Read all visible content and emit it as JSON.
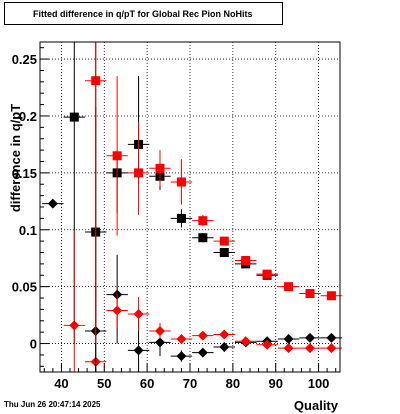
{
  "title": "Fitted difference in q/pT for Global Rec Pion NoHits",
  "footer": "Thu Jun 26 20:47:14 2025",
  "colors": {
    "black_series": "#000000",
    "red_series": "#ff0000"
  },
  "chart_data": {
    "type": "scatter",
    "title": "Fitted difference in q/pT for Global Rec Pion NoHits",
    "xlabel": "Quality",
    "ylabel": "difference in q/pT",
    "xlim": [
      35,
      105
    ],
    "ylim": [
      -0.025,
      0.265
    ],
    "grid": true,
    "x_ticks": [
      40,
      50,
      60,
      70,
      80,
      90,
      100
    ],
    "y_ticks": [
      0,
      0.05,
      0.1,
      0.15,
      0.2,
      0.25
    ],
    "y_tick_labels": [
      "0",
      "0.05",
      "0.1",
      "0.15",
      "0.2",
      "0.25"
    ],
    "series": [
      {
        "marker": "square",
        "color": "#000000",
        "points": [
          {
            "x": 43,
            "y": 0.199,
            "ex": 2.5,
            "ey_lo": 0.0,
            "ey_hi": 0.0
          },
          {
            "x": 48,
            "y": 0.098,
            "ex": 2.5,
            "ey_lo": 0.08,
            "ey_hi": 0.11
          },
          {
            "x": 53,
            "y": 0.15,
            "ex": 2.5,
            "ey_lo": 0.035,
            "ey_hi": 0.02
          },
          {
            "x": 58,
            "y": 0.175,
            "ex": 2.5,
            "ey_lo": 0.035,
            "ey_hi": 0.06
          },
          {
            "x": 63,
            "y": 0.147,
            "ex": 2.5,
            "ey_lo": 0.012,
            "ey_hi": 0.012
          },
          {
            "x": 68,
            "y": 0.11,
            "ex": 2.5,
            "ey_lo": 0.008,
            "ey_hi": 0.008
          },
          {
            "x": 73,
            "y": 0.093,
            "ex": 2.5,
            "ey_lo": 0.004,
            "ey_hi": 0.004
          },
          {
            "x": 78,
            "y": 0.08,
            "ex": 2.5,
            "ey_lo": 0.003,
            "ey_hi": 0.003
          },
          {
            "x": 83,
            "y": 0.07,
            "ex": 2.5,
            "ey_lo": 0.002,
            "ey_hi": 0.002
          },
          {
            "x": 88,
            "y": 0.06,
            "ex": 2.5,
            "ey_lo": 0.001,
            "ey_hi": 0.001
          }
        ]
      },
      {
        "marker": "square",
        "color": "#ff0000",
        "points": [
          {
            "x": 48,
            "y": 0.231,
            "ex": 2.5,
            "ey_lo": 0.0,
            "ey_hi": 0.0
          },
          {
            "x": 53,
            "y": 0.165,
            "ex": 2.5,
            "ey_lo": 0.07,
            "ey_hi": 0.07
          },
          {
            "x": 58,
            "y": 0.15,
            "ex": 2.5,
            "ey_lo": 0.037,
            "ey_hi": 0.045
          },
          {
            "x": 63,
            "y": 0.154,
            "ex": 2.5,
            "ey_lo": 0.016,
            "ey_hi": 0.016
          },
          {
            "x": 68,
            "y": 0.142,
            "ex": 2.5,
            "ey_lo": 0.02,
            "ey_hi": 0.02
          },
          {
            "x": 73,
            "y": 0.108,
            "ex": 2.5,
            "ey_lo": 0.005,
            "ey_hi": 0.005
          },
          {
            "x": 78,
            "y": 0.09,
            "ex": 2.5,
            "ey_lo": 0.003,
            "ey_hi": 0.003
          },
          {
            "x": 83,
            "y": 0.073,
            "ex": 2.5,
            "ey_lo": 0.002,
            "ey_hi": 0.002
          },
          {
            "x": 88,
            "y": 0.061,
            "ex": 2.5,
            "ey_lo": 0.002,
            "ey_hi": 0.002
          },
          {
            "x": 93,
            "y": 0.05,
            "ex": 2.5,
            "ey_lo": 0.001,
            "ey_hi": 0.001
          },
          {
            "x": 98,
            "y": 0.044,
            "ex": 2.5,
            "ey_lo": 0.001,
            "ey_hi": 0.001
          },
          {
            "x": 103,
            "y": 0.042,
            "ex": 2.5,
            "ey_lo": 0.001,
            "ey_hi": 0.001
          }
        ]
      },
      {
        "marker": "diamond",
        "color": "#000000",
        "points": [
          {
            "x": 38,
            "y": 0.123,
            "ex": 2.5,
            "ey_lo": 0.0,
            "ey_hi": 0.0
          },
          {
            "x": 48,
            "y": 0.011,
            "ex": 2.5,
            "ey_lo": 0.04,
            "ey_hi": 0.04
          },
          {
            "x": 53,
            "y": 0.043,
            "ex": 2.5,
            "ey_lo": 0.043,
            "ey_hi": 0.035
          },
          {
            "x": 58,
            "y": -0.006,
            "ex": 2.5,
            "ey_lo": 0.025,
            "ey_hi": 0.03
          },
          {
            "x": 63,
            "y": 0.001,
            "ex": 2.5,
            "ey_lo": 0.012,
            "ey_hi": 0.012
          },
          {
            "x": 68,
            "y": -0.011,
            "ex": 2.5,
            "ey_lo": 0.005,
            "ey_hi": 0.005
          },
          {
            "x": 73,
            "y": -0.008,
            "ex": 2.5,
            "ey_lo": 0.003,
            "ey_hi": 0.003
          },
          {
            "x": 78,
            "y": -0.003,
            "ex": 2.5,
            "ey_lo": 0.002,
            "ey_hi": 0.002
          },
          {
            "x": 83,
            "y": 0.001,
            "ex": 2.5,
            "ey_lo": 0.002,
            "ey_hi": 0.002
          },
          {
            "x": 88,
            "y": 0.002,
            "ex": 2.5,
            "ey_lo": 0.001,
            "ey_hi": 0.001
          },
          {
            "x": 93,
            "y": 0.004,
            "ex": 2.5,
            "ey_lo": 0.001,
            "ey_hi": 0.001
          },
          {
            "x": 98,
            "y": 0.005,
            "ex": 2.5,
            "ey_lo": 0.001,
            "ey_hi": 0.001
          },
          {
            "x": 103,
            "y": 0.005,
            "ex": 2.5,
            "ey_lo": 0.001,
            "ey_hi": 0.001
          }
        ]
      },
      {
        "marker": "diamond",
        "color": "#ff0000",
        "points": [
          {
            "x": 43,
            "y": 0.016,
            "ex": 2.5,
            "ey_lo": 0.0,
            "ey_hi": 0.0
          },
          {
            "x": 48,
            "y": -0.016,
            "ex": 2.5,
            "ey_lo": 0.0,
            "ey_hi": 0.0
          },
          {
            "x": 53,
            "y": 0.029,
            "ex": 2.5,
            "ey_lo": 0.015,
            "ey_hi": 0.015
          },
          {
            "x": 58,
            "y": 0.026,
            "ex": 2.5,
            "ey_lo": 0.015,
            "ey_hi": 0.015
          },
          {
            "x": 63,
            "y": 0.011,
            "ex": 2.5,
            "ey_lo": 0.007,
            "ey_hi": 0.007
          },
          {
            "x": 68,
            "y": 0.004,
            "ex": 2.5,
            "ey_lo": 0.003,
            "ey_hi": 0.003
          },
          {
            "x": 73,
            "y": 0.007,
            "ex": 2.5,
            "ey_lo": 0.002,
            "ey_hi": 0.002
          },
          {
            "x": 78,
            "y": 0.008,
            "ex": 2.5,
            "ey_lo": 0.002,
            "ey_hi": 0.002
          },
          {
            "x": 83,
            "y": 0.002,
            "ex": 2.5,
            "ey_lo": 0.001,
            "ey_hi": 0.001
          },
          {
            "x": 88,
            "y": -0.001,
            "ex": 2.5,
            "ey_lo": 0.001,
            "ey_hi": 0.001
          },
          {
            "x": 93,
            "y": -0.004,
            "ex": 2.5,
            "ey_lo": 0.001,
            "ey_hi": 0.001
          },
          {
            "x": 98,
            "y": -0.004,
            "ex": 2.5,
            "ey_lo": 0.001,
            "ey_hi": 0.001
          },
          {
            "x": 103,
            "y": -0.004,
            "ex": 2.5,
            "ey_lo": 0.001,
            "ey_hi": 0.001
          }
        ]
      }
    ]
  }
}
